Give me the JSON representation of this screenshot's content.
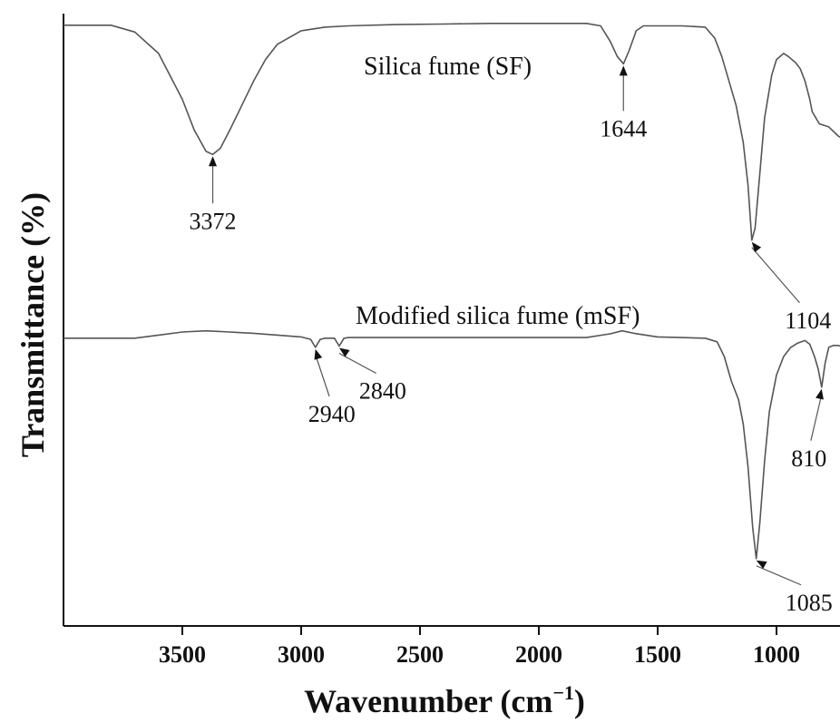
{
  "chart_data": {
    "type": "line",
    "xlabel": "Wavenumber (cm",
    "xlabel_sup": "−1",
    "xlabel_close": ")",
    "ylabel": "Transmittance (%)",
    "x_reversed": true,
    "xlim": [
      4000,
      700
    ],
    "ylim": [
      0,
      1
    ],
    "grid": false,
    "xticks": [
      3500,
      3000,
      2500,
      2000,
      1500,
      1000
    ],
    "series": [
      {
        "name": "Silica fume (SF)",
        "x": [
          4000,
          3800,
          3700,
          3600,
          3500,
          3450,
          3400,
          3372,
          3340,
          3300,
          3250,
          3200,
          3150,
          3100,
          3000,
          2900,
          2800,
          2600,
          2400,
          2200,
          2000,
          1800,
          1740,
          1700,
          1670,
          1644,
          1620,
          1590,
          1560,
          1500,
          1400,
          1300,
          1260,
          1230,
          1200,
          1170,
          1140,
          1120,
          1104,
          1090,
          1070,
          1050,
          1020,
          1000,
          970,
          950,
          920,
          900,
          880,
          860,
          850,
          820,
          780,
          740,
          700
        ],
        "y": [
          0.981,
          0.981,
          0.97,
          0.935,
          0.86,
          0.81,
          0.775,
          0.77,
          0.78,
          0.81,
          0.85,
          0.89,
          0.925,
          0.95,
          0.972,
          0.978,
          0.98,
          0.982,
          0.983,
          0.984,
          0.984,
          0.984,
          0.98,
          0.955,
          0.93,
          0.918,
          0.94,
          0.972,
          0.98,
          0.98,
          0.98,
          0.978,
          0.96,
          0.93,
          0.89,
          0.85,
          0.79,
          0.72,
          0.63,
          0.65,
          0.74,
          0.83,
          0.9,
          0.925,
          0.935,
          0.93,
          0.92,
          0.91,
          0.89,
          0.86,
          0.84,
          0.82,
          0.815,
          0.8,
          0.79
        ]
      },
      {
        "name": "Modified silica fume (mSF)",
        "x": [
          4000,
          3800,
          3700,
          3600,
          3500,
          3400,
          3300,
          3200,
          3100,
          3000,
          2960,
          2940,
          2920,
          2900,
          2860,
          2840,
          2820,
          2800,
          2600,
          2400,
          2200,
          2000,
          1800,
          1700,
          1650,
          1600,
          1500,
          1400,
          1300,
          1250,
          1220,
          1190,
          1160,
          1140,
          1120,
          1100,
          1085,
          1070,
          1050,
          1030,
          1000,
          970,
          940,
          910,
          880,
          860,
          840,
          825,
          810,
          795,
          780,
          760,
          740,
          720,
          700
        ],
        "y": [
          0.47,
          0.47,
          0.47,
          0.475,
          0.48,
          0.482,
          0.48,
          0.478,
          0.475,
          0.472,
          0.468,
          0.455,
          0.468,
          0.47,
          0.47,
          0.457,
          0.47,
          0.471,
          0.471,
          0.471,
          0.471,
          0.471,
          0.471,
          0.477,
          0.482,
          0.478,
          0.472,
          0.471,
          0.47,
          0.464,
          0.44,
          0.4,
          0.37,
          0.33,
          0.26,
          0.16,
          0.11,
          0.17,
          0.27,
          0.35,
          0.41,
          0.44,
          0.455,
          0.462,
          0.466,
          0.46,
          0.44,
          0.42,
          0.39,
          0.43,
          0.455,
          0.458,
          0.458,
          0.455,
          0.455
        ]
      }
    ],
    "annotations": [
      {
        "series": 0,
        "x": 3372,
        "label": "3372"
      },
      {
        "series": 0,
        "x": 1644,
        "label": "1644"
      },
      {
        "series": 0,
        "x": 1104,
        "label": "1104"
      },
      {
        "series": 1,
        "x": 2940,
        "label": "2940"
      },
      {
        "series": 1,
        "x": 2840,
        "label": "2840"
      },
      {
        "series": 1,
        "x": 1085,
        "label": "1085"
      },
      {
        "series": 1,
        "x": 810,
        "label": "810"
      }
    ],
    "colors": {
      "line": "#555555",
      "axis": "#111111",
      "text": "#111111"
    }
  }
}
